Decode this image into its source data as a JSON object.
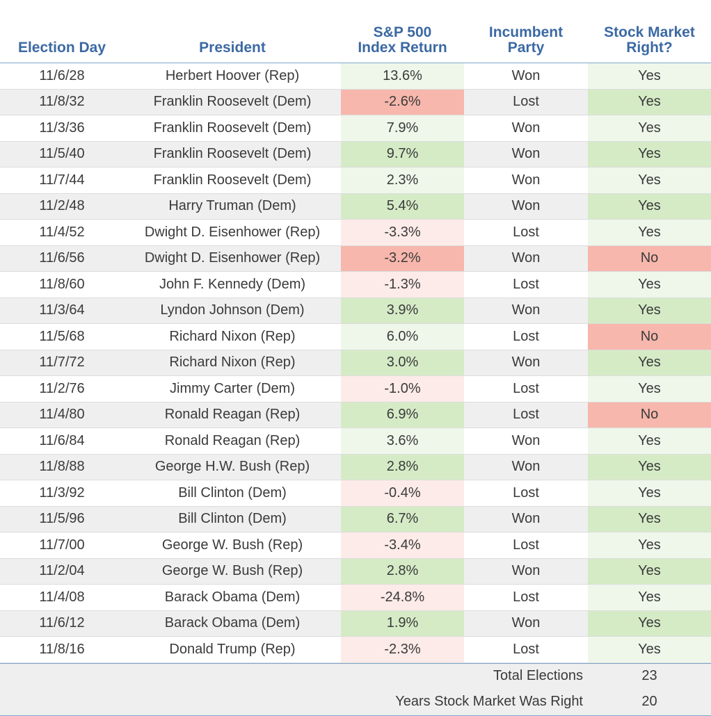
{
  "colors": {
    "header_text": "#3b69a3",
    "positive_strong": "#d5ebc6",
    "positive_light": "#eef7ea",
    "negative_strong": "#f7b7ac",
    "negative_light": "#fcebe8"
  },
  "chart_data": {
    "type": "table",
    "columns": [
      [
        "Election Day"
      ],
      [
        "President"
      ],
      [
        "S&P 500",
        "Index Return"
      ],
      [
        "Incumbent",
        "Party"
      ],
      [
        "Stock Market",
        "Right?"
      ]
    ],
    "rows": [
      {
        "date": "11/6/28",
        "president": "Herbert Hoover (Rep)",
        "return": "13.6%",
        "value": 13.6,
        "party": "Won",
        "right": "Yes",
        "return_shade": "positive_light",
        "right_shade": "positive_light"
      },
      {
        "date": "11/8/32",
        "president": "Franklin Roosevelt (Dem)",
        "return": "-2.6%",
        "value": -2.6,
        "party": "Lost",
        "right": "Yes",
        "return_shade": "negative_strong",
        "right_shade": "positive_strong"
      },
      {
        "date": "11/3/36",
        "president": "Franklin Roosevelt (Dem)",
        "return": "7.9%",
        "value": 7.9,
        "party": "Won",
        "right": "Yes",
        "return_shade": "positive_light",
        "right_shade": "positive_light"
      },
      {
        "date": "11/5/40",
        "president": "Franklin Roosevelt (Dem)",
        "return": "9.7%",
        "value": 9.7,
        "party": "Won",
        "right": "Yes",
        "return_shade": "positive_strong",
        "right_shade": "positive_strong"
      },
      {
        "date": "11/7/44",
        "president": "Franklin Roosevelt (Dem)",
        "return": "2.3%",
        "value": 2.3,
        "party": "Won",
        "right": "Yes",
        "return_shade": "positive_light",
        "right_shade": "positive_light"
      },
      {
        "date": "11/2/48",
        "president": "Harry Truman (Dem)",
        "return": "5.4%",
        "value": 5.4,
        "party": "Won",
        "right": "Yes",
        "return_shade": "positive_strong",
        "right_shade": "positive_strong"
      },
      {
        "date": "11/4/52",
        "president": "Dwight D. Eisenhower (Rep)",
        "return": "-3.3%",
        "value": -3.3,
        "party": "Lost",
        "right": "Yes",
        "return_shade": "negative_light",
        "right_shade": "positive_light"
      },
      {
        "date": "11/6/56",
        "president": "Dwight D. Eisenhower (Rep)",
        "return": "-3.2%",
        "value": -3.2,
        "party": "Won",
        "right": "No",
        "return_shade": "negative_strong",
        "right_shade": "negative_strong"
      },
      {
        "date": "11/8/60",
        "president": "John F. Kennedy (Dem)",
        "return": "-1.3%",
        "value": -1.3,
        "party": "Lost",
        "right": "Yes",
        "return_shade": "negative_light",
        "right_shade": "positive_light"
      },
      {
        "date": "11/3/64",
        "president": "Lyndon Johnson (Dem)",
        "return": "3.9%",
        "value": 3.9,
        "party": "Won",
        "right": "Yes",
        "return_shade": "positive_strong",
        "right_shade": "positive_strong"
      },
      {
        "date": "11/5/68",
        "president": "Richard Nixon (Rep)",
        "return": "6.0%",
        "value": 6.0,
        "party": "Lost",
        "right": "No",
        "return_shade": "positive_light",
        "right_shade": "negative_strong"
      },
      {
        "date": "11/7/72",
        "president": "Richard Nixon (Rep)",
        "return": "3.0%",
        "value": 3.0,
        "party": "Won",
        "right": "Yes",
        "return_shade": "positive_strong",
        "right_shade": "positive_strong"
      },
      {
        "date": "11/2/76",
        "president": "Jimmy Carter (Dem)",
        "return": "-1.0%",
        "value": -1.0,
        "party": "Lost",
        "right": "Yes",
        "return_shade": "negative_light",
        "right_shade": "positive_light"
      },
      {
        "date": "11/4/80",
        "president": "Ronald Reagan (Rep)",
        "return": "6.9%",
        "value": 6.9,
        "party": "Lost",
        "right": "No",
        "return_shade": "positive_strong",
        "right_shade": "negative_strong"
      },
      {
        "date": "11/6/84",
        "president": "Ronald Reagan (Rep)",
        "return": "3.6%",
        "value": 3.6,
        "party": "Won",
        "right": "Yes",
        "return_shade": "positive_light",
        "right_shade": "positive_light"
      },
      {
        "date": "11/8/88",
        "president": "George H.W. Bush (Rep)",
        "return": "2.8%",
        "value": 2.8,
        "party": "Won",
        "right": "Yes",
        "return_shade": "positive_strong",
        "right_shade": "positive_strong"
      },
      {
        "date": "11/3/92",
        "president": "Bill Clinton (Dem)",
        "return": "-0.4%",
        "value": -0.4,
        "party": "Lost",
        "right": "Yes",
        "return_shade": "negative_light",
        "right_shade": "positive_light"
      },
      {
        "date": "11/5/96",
        "president": "Bill Clinton (Dem)",
        "return": "6.7%",
        "value": 6.7,
        "party": "Won",
        "right": "Yes",
        "return_shade": "positive_strong",
        "right_shade": "positive_strong"
      },
      {
        "date": "11/7/00",
        "president": "George W. Bush (Rep)",
        "return": "-3.4%",
        "value": -3.4,
        "party": "Lost",
        "right": "Yes",
        "return_shade": "negative_light",
        "right_shade": "positive_light"
      },
      {
        "date": "11/2/04",
        "president": "George W. Bush (Rep)",
        "return": "2.8%",
        "value": 2.8,
        "party": "Won",
        "right": "Yes",
        "return_shade": "positive_strong",
        "right_shade": "positive_strong"
      },
      {
        "date": "11/4/08",
        "president": "Barack Obama (Dem)",
        "return": "-24.8%",
        "value": -24.8,
        "party": "Lost",
        "right": "Yes",
        "return_shade": "negative_light",
        "right_shade": "positive_light"
      },
      {
        "date": "11/6/12",
        "president": "Barack Obama (Dem)",
        "return": "1.9%",
        "value": 1.9,
        "party": "Won",
        "right": "Yes",
        "return_shade": "positive_strong",
        "right_shade": "positive_strong"
      },
      {
        "date": "11/8/16",
        "president": "Donald Trump (Rep)",
        "return": "-2.3%",
        "value": -2.3,
        "party": "Lost",
        "right": "Yes",
        "return_shade": "negative_light",
        "right_shade": "positive_light"
      }
    ],
    "summary": [
      {
        "label": "Total Elections",
        "value": "23"
      },
      {
        "label": "Years Stock Market Was Right",
        "value": "20"
      }
    ]
  }
}
